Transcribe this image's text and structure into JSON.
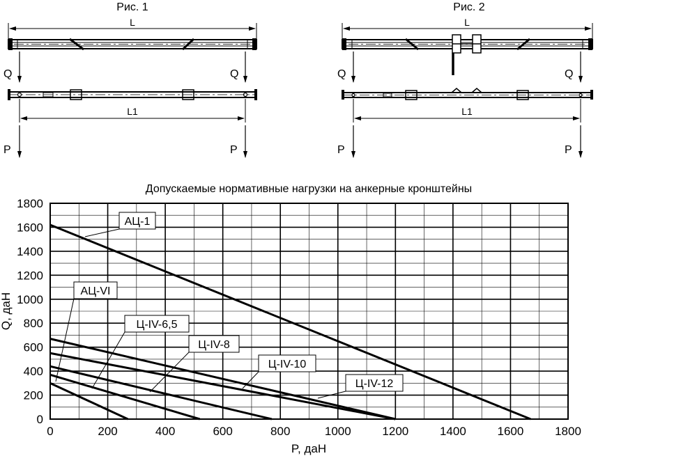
{
  "figures": {
    "fig1": {
      "title": "Рис. 1",
      "length_label": "L",
      "span_label": "L1",
      "load_q": "Q",
      "load_p": "P"
    },
    "fig2": {
      "title": "Рис. 2",
      "length_label": "L",
      "span_label": "L1",
      "load_q": "Q",
      "load_p": "P"
    }
  },
  "chart_data": {
    "type": "line",
    "title": "Допускаемые нормативные нагрузки на анкерные кронштейны",
    "xlabel": "P, даН",
    "ylabel": "Q, даН",
    "xlim": [
      0,
      1800
    ],
    "ylim": [
      0,
      1800
    ],
    "xticks": [
      0,
      200,
      400,
      600,
      800,
      1000,
      1200,
      1400,
      1600,
      1800
    ],
    "yticks": [
      0,
      200,
      400,
      600,
      800,
      1000,
      1200,
      1400,
      1600,
      1800
    ],
    "grid": true,
    "series": [
      {
        "name": "АЦ-1",
        "x": [
          0,
          1670
        ],
        "y": [
          1620,
          0
        ]
      },
      {
        "name": "АЦ-VI",
        "x": [
          0,
          270
        ],
        "y": [
          300,
          0
        ]
      },
      {
        "name": "Ц-IV-6,5",
        "x": [
          0,
          520
        ],
        "y": [
          370,
          0
        ]
      },
      {
        "name": "Ц-IV-8",
        "x": [
          0,
          770
        ],
        "y": [
          440,
          0
        ]
      },
      {
        "name": "Ц-IV-10",
        "x": [
          0,
          1200
        ],
        "y": [
          550,
          0
        ]
      },
      {
        "name": "Ц-IV-12",
        "x": [
          0,
          1200
        ],
        "y": [
          670,
          0
        ]
      }
    ]
  }
}
